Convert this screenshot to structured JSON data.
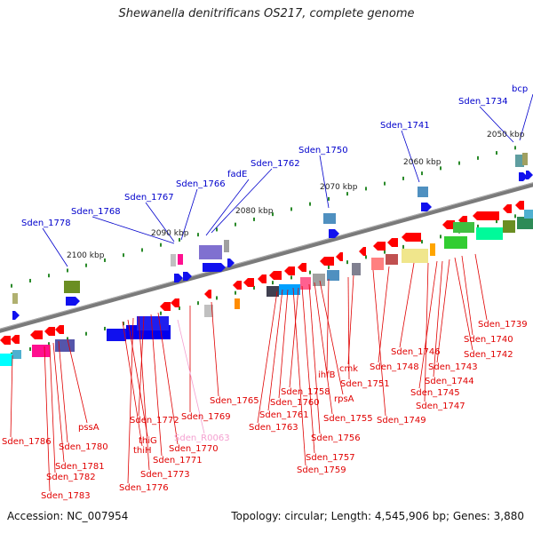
{
  "title": "Shewanella denitrificans OS217, complete genome",
  "accession": "Accession: NC_007954",
  "topology": "Topology: circular; Length: 4,545,906 bp; Genes: 3,880",
  "colors": {
    "backbone": "#808080",
    "upper_label": "#0000cc",
    "lower_label": "#e00000",
    "rna_label": "#f4a0d0",
    "tick": "#2a8a2a"
  },
  "scale_labels": [
    "2050 kbp",
    "2060 kbp",
    "2070 kbp",
    "2080 kbp",
    "2090 kbp",
    "2100 kbp"
  ],
  "upper_gene_labels": [
    "bcp",
    "Sden_1734",
    "Sden_1741",
    "Sden_1750",
    "Sden_1762",
    "fadE",
    "Sden_1766",
    "Sden_1767",
    "Sden_1768",
    "Sden_1778"
  ],
  "lower_gene_labels": [
    "Sden_1739",
    "Sden_1740",
    "Sden_1742",
    "Sden_1743",
    "Sden_1744",
    "Sden_1745",
    "Sden_1746",
    "Sden_1747",
    "Sden_1748",
    "Sden_1749",
    "cmk",
    "Sden_1751",
    "ihfB",
    "rpsA",
    "Sden_1755",
    "Sden_1756",
    "Sden_1757",
    "Sden_1758",
    "Sden_1759",
    "Sden_1760",
    "Sden_1761",
    "Sden_1763",
    "Sden_1765",
    "Sden_1769",
    "Sden_1770",
    "Sden_1771",
    "Sden_1772",
    "Sden_1773",
    "Sden_1776",
    "thiG",
    "thiH",
    "pssA",
    "Sden_1780",
    "Sden_1781",
    "Sden_1782",
    "Sden_1783",
    "Sden_1786"
  ],
  "rna_gene_labels": [
    "Sden_R0063"
  ]
}
